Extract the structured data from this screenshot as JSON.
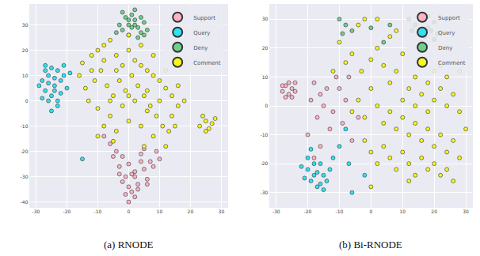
{
  "chart_data": [
    {
      "type": "scatter",
      "title": "(a) RNODE",
      "xlim": [
        -32,
        32
      ],
      "xticks": [
        -30,
        -20,
        -10,
        0,
        10,
        20,
        30
      ],
      "ylim": [
        -42,
        38
      ],
      "yticks": [
        -40,
        -30,
        -20,
        -10,
        0,
        10,
        20,
        30
      ],
      "grid": true,
      "legend": "upper right",
      "marker": "circle",
      "series": [
        {
          "name": "Support",
          "color": "#ffb3c6",
          "x": [
            -2,
            0,
            2,
            4,
            -1,
            3,
            5,
            1,
            -3,
            6,
            2,
            0,
            -4,
            4,
            7,
            1,
            -2,
            3,
            5,
            8,
            -6,
            -8,
            -5,
            9,
            0,
            2,
            -1,
            6,
            -3,
            10
          ],
          "y": [
            -22,
            -25,
            -28,
            -24,
            -30,
            -33,
            -27,
            -36,
            -26,
            -31,
            -38,
            -34,
            -20,
            -21,
            -24,
            -29,
            -32,
            -35,
            -19,
            -26,
            -17,
            -14,
            -22,
            -20,
            -40,
            -30,
            -37,
            -33,
            -29,
            -23
          ]
        },
        {
          "name": "Query",
          "color": "#2fe3f2",
          "x": [
            -28,
            -26,
            -24,
            -27,
            -25,
            -23,
            -22,
            -29,
            -26,
            -24,
            -21,
            -27,
            -25,
            -23,
            -28,
            -20,
            -26,
            -22,
            -24,
            -19,
            -25,
            -27,
            -21,
            -23,
            -15
          ],
          "y": [
            8,
            10,
            6,
            4,
            2,
            12,
            8,
            6,
            0,
            4,
            10,
            14,
            13,
            -2,
            1,
            5,
            7,
            3,
            9,
            11,
            -4,
            12,
            14,
            0,
            -23
          ]
        },
        {
          "name": "Deny",
          "color": "#6fd08c",
          "x": [
            -2,
            0,
            2,
            4,
            1,
            -1,
            3,
            5,
            -3,
            0,
            2,
            6,
            4,
            -4,
            1,
            3,
            -2,
            5,
            0,
            2
          ],
          "y": [
            28,
            30,
            32,
            27,
            34,
            33,
            29,
            31,
            30,
            26,
            36,
            28,
            33,
            27,
            29,
            25,
            35,
            26,
            32,
            30
          ]
        },
        {
          "name": "Comment",
          "color": "#f7f71e",
          "x": [
            -15,
            -12,
            -10,
            -8,
            -6,
            -4,
            -2,
            0,
            2,
            4,
            6,
            8,
            10,
            12,
            14,
            16,
            -14,
            -11,
            -9,
            -7,
            -5,
            -3,
            -1,
            1,
            3,
            5,
            7,
            9,
            11,
            13,
            -13,
            -10,
            -6,
            -2,
            2,
            6,
            10,
            14,
            -8,
            -4,
            0,
            4,
            8,
            12,
            -16,
            -12,
            -8,
            -4,
            0,
            4,
            8,
            12,
            16,
            -6,
            0,
            6,
            18,
            -10,
            -5,
            5,
            15,
            24,
            25,
            27,
            26,
            28,
            23,
            25
          ],
          "y": [
            15,
            18,
            20,
            22,
            24,
            18,
            14,
            20,
            16,
            22,
            12,
            10,
            8,
            5,
            2,
            -2,
            5,
            8,
            12,
            6,
            2,
            8,
            4,
            10,
            6,
            2,
            -2,
            -6,
            -10,
            -12,
            0,
            -3,
            -6,
            -2,
            0,
            4,
            0,
            -6,
            -10,
            -12,
            -8,
            -10,
            -14,
            -18,
            10,
            12,
            16,
            12,
            26,
            14,
            18,
            12,
            6,
            0,
            2,
            -4,
            0,
            -14,
            -16,
            -18,
            -10,
            -6,
            -8,
            -9,
            -11,
            -7,
            -10,
            -12
          ]
        }
      ]
    },
    {
      "type": "scatter",
      "title": "(b) Bi-RNODE",
      "xlim": [
        -32,
        32
      ],
      "xticks": [
        -30,
        -20,
        -10,
        0,
        10,
        20,
        30
      ],
      "ylim": [
        -35,
        35
      ],
      "yticks": [
        -30,
        -20,
        -10,
        0,
        10,
        20,
        30
      ],
      "grid": true,
      "legend": "upper right",
      "marker": "circle",
      "series": [
        {
          "name": "Support",
          "color": "#ffb3c6",
          "x": [
            -28,
            -27,
            -26,
            -25,
            -27,
            -24,
            -26,
            -25,
            -28,
            -24,
            -18,
            -16,
            -14,
            -19,
            -15,
            -12,
            -17,
            -10,
            -8,
            -13,
            -20,
            -9,
            -6,
            -11,
            -16,
            -4,
            -18,
            -7
          ],
          "y": [
            5,
            7,
            4,
            6,
            3,
            8,
            8,
            3,
            7,
            5,
            8,
            4,
            6,
            2,
            0,
            -2,
            -4,
            6,
            2,
            -8,
            -10,
            -6,
            -12,
            10,
            -14,
            -4,
            -18,
            10
          ]
        },
        {
          "name": "Query",
          "color": "#2fe3f2",
          "x": [
            -20,
            -18,
            -16,
            -19,
            -17,
            -15,
            -13,
            -21,
            -18,
            -14,
            -16,
            -12,
            -20,
            -17,
            -15,
            -22,
            -10,
            -8,
            -6,
            -19,
            -7,
            -2
          ],
          "y": [
            -22,
            -24,
            -20,
            -26,
            -28,
            -24,
            -22,
            -25,
            -20,
            -26,
            -27,
            -18,
            -18,
            -23,
            -29,
            -21,
            -14,
            -8,
            -30,
            -15,
            -20,
            -24
          ]
        },
        {
          "name": "Deny",
          "color": "#6fd08c",
          "x": [
            14,
            16,
            18,
            20,
            15,
            17,
            19,
            21,
            13,
            16,
            18,
            12,
            20,
            -10,
            -8,
            -6,
            -9,
            0,
            4,
            6
          ],
          "y": [
            28,
            30,
            27,
            29,
            25,
            24,
            26,
            25,
            26,
            22,
            31,
            30,
            23,
            30,
            28,
            26,
            25,
            27,
            22,
            28
          ]
        },
        {
          "name": "Comment",
          "color": "#f7f71e",
          "x": [
            -10,
            -6,
            -4,
            -2,
            2,
            6,
            8,
            -8,
            -3,
            0,
            2,
            4,
            6,
            8,
            10,
            12,
            14,
            16,
            18,
            20,
            22,
            24,
            26,
            28,
            -4,
            -2,
            0,
            2,
            4,
            6,
            8,
            10,
            12,
            14,
            16,
            18,
            20,
            22,
            24,
            26,
            28,
            30,
            -2,
            0,
            2,
            4,
            6,
            8,
            10,
            12,
            14,
            16,
            18,
            20,
            22,
            24,
            26,
            10,
            14,
            18,
            22,
            20,
            24,
            -6,
            -12,
            0,
            12,
            28
          ],
          "y": [
            22,
            18,
            28,
            30,
            30,
            24,
            26,
            15,
            12,
            16,
            20,
            14,
            8,
            12,
            18,
            6,
            10,
            4,
            8,
            2,
            6,
            0,
            4,
            -2,
            2,
            -4,
            6,
            0,
            -6,
            -2,
            -8,
            -4,
            -10,
            -6,
            -12,
            -8,
            -14,
            -10,
            -16,
            -12,
            -18,
            -8,
            -12,
            -16,
            -20,
            -14,
            -18,
            -22,
            -16,
            -20,
            -24,
            -18,
            -22,
            -20,
            -24,
            -22,
            -26,
            2,
            0,
            -2,
            14,
            12,
            10,
            -2,
            12,
            -28,
            -26,
            12
          ]
        }
      ]
    }
  ]
}
